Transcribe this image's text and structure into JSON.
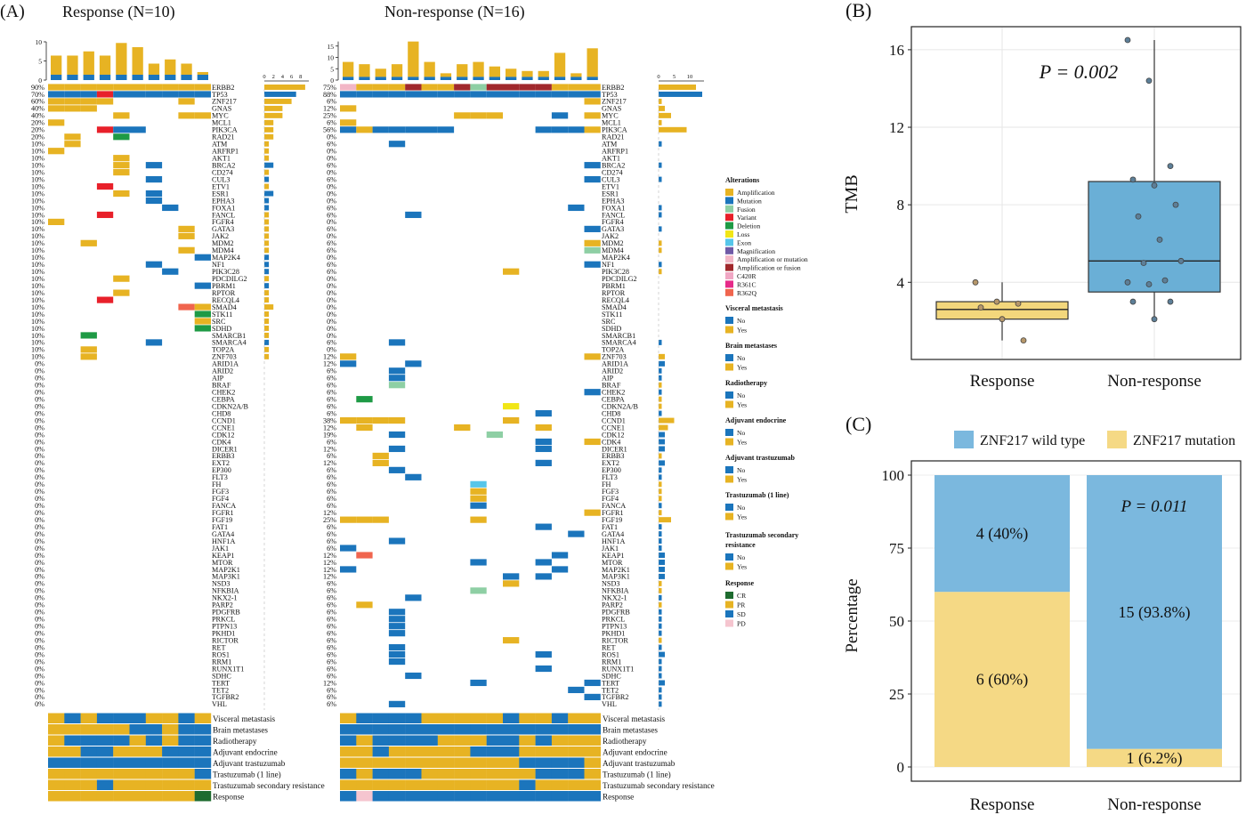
{
  "colors": {
    "amplification": "#E7B323",
    "mutation": "#1B75BC",
    "fusion": "#8ECFA4",
    "variant": "#E8202A",
    "deletion": "#1E9A45",
    "loss": "#F1E616",
    "exon": "#56C6EA",
    "magnification": "#6F5AA6",
    "amp_or_mut": "#F2B6C6",
    "amp_or_fusion": "#A0282C",
    "C420R": "#F0A7C4",
    "R361C": "#E62A89",
    "R362Q": "#F0654E",
    "no": "#1B75BC",
    "yes": "#E7B323",
    "CR": "#1E6B2F",
    "PR": "#E7B323",
    "SD": "#1B75BC",
    "PD": "#F5C5CF",
    "box_response": "#F3D77C",
    "box_nonresponse": "#6AAFD6",
    "wild_type": "#7BB8DE",
    "znf_mutation": "#F5D985"
  },
  "panel_labels": {
    "a": "(A)",
    "b": "(B)",
    "c": "(C)"
  },
  "panel_a": {
    "group_left_title": "Response (N=10)",
    "group_right_title": "Non-response (N=16)",
    "top_axis_left_ticks": [
      "10",
      "5",
      "0"
    ],
    "top_axis_right_ticks": [
      "15",
      "10",
      "5",
      "0"
    ],
    "side_axis_left_ticks": [
      "0",
      "2",
      "4",
      "6",
      "8"
    ],
    "side_axis_right_ticks": [
      "0",
      "5",
      "10"
    ],
    "legend": {
      "alterations_title": "Alterations",
      "alterations": [
        {
          "key": "amplification",
          "label": "Amplification"
        },
        {
          "key": "mutation",
          "label": "Mutation"
        },
        {
          "key": "fusion",
          "label": "Fusion"
        },
        {
          "key": "variant",
          "label": "Variant"
        },
        {
          "key": "deletion",
          "label": "Deletion"
        },
        {
          "key": "loss",
          "label": "Loss"
        },
        {
          "key": "exon",
          "label": "Exon"
        },
        {
          "key": "magnification",
          "label": "Magnification"
        },
        {
          "key": "amp_or_mut",
          "label": "Amplification or mutation"
        },
        {
          "key": "amp_or_fusion",
          "label": "Amplification or fusion"
        },
        {
          "key": "C420R",
          "label": "C420R"
        },
        {
          "key": "R361C",
          "label": "R361C"
        },
        {
          "key": "R362Q",
          "label": "R362Q"
        }
      ],
      "clinical": [
        {
          "title": "Visceral metastasis",
          "items": [
            "No",
            "Yes"
          ]
        },
        {
          "title": "Brain metastases",
          "items": [
            "No",
            "Yes"
          ]
        },
        {
          "title": "Radiotherapy",
          "items": [
            "No",
            "Yes"
          ]
        },
        {
          "title": "Adjuvant endocrine",
          "items": [
            "No",
            "Yes"
          ]
        },
        {
          "title": "Adjuvant trastuzumab",
          "items": [
            "No",
            "Yes"
          ]
        },
        {
          "title": "Trastuzumab (1 line)",
          "items": [
            "No",
            "Yes"
          ]
        },
        {
          "title": "Trastuzumab secondary",
          "title2": "resistance",
          "items": [
            "No",
            "Yes"
          ]
        },
        {
          "title": "Response",
          "items": [
            "CR",
            "PR",
            "SD",
            "PD"
          ]
        }
      ]
    }
  },
  "chart_data": [
    {
      "type": "heatmap",
      "genes": [
        "ERBB2",
        "TP53",
        "ZNF217",
        "GNAS",
        "MYC",
        "MCL1",
        "PIK3CA",
        "RAD21",
        "ATM",
        "ARFRP1",
        "AKT1",
        "BRCA2",
        "CD274",
        "CUL3",
        "ETV1",
        "ESR1",
        "EPHA3",
        "FOXA1",
        "FANCL",
        "FGFR4",
        "GATA3",
        "JAK2",
        "MDM2",
        "MDM4",
        "MAP2K4",
        "NF1",
        "PIK3C28",
        "PDCDILG2",
        "PBRM1",
        "RPTOR",
        "RECQL4",
        "SMAD4",
        "STK11",
        "SRC",
        "SDHD",
        "SMARCB1",
        "SMARCA4",
        "TOP2A",
        "ZNF703",
        "ARID1A",
        "ARID2",
        "AIP",
        "BRAF",
        "CHEK2",
        "CEBPA",
        "CDKN2A/B",
        "CHD8",
        "CCND1",
        "CCNE1",
        "CDK12",
        "CDK4",
        "DICER1",
        "ERBB3",
        "EXT2",
        "EP300",
        "FLT3",
        "FH",
        "FGF3",
        "FGF4",
        "FANCA",
        "FGFR1",
        "FGF19",
        "FAT1",
        "GATA4",
        "HNF1A",
        "JAK1",
        "KEAP1",
        "MTOR",
        "MAP2K1",
        "MAP3K1",
        "NSD3",
        "NFKBIA",
        "NKX2-1",
        "PARP2",
        "PDGFRB",
        "PRKCL",
        "PTPN13",
        "PKHD1",
        "RICTOR",
        "RET",
        "ROS1",
        "RRM1",
        "RUNX1T1",
        "SDHC",
        "TERT",
        "TET2",
        "TGFBR2",
        "VHL"
      ],
      "response_freq": [
        "90%",
        "70%",
        "60%",
        "40%",
        "40%",
        "20%",
        "20%",
        "20%",
        "10%",
        "10%",
        "10%",
        "10%",
        "10%",
        "10%",
        "10%",
        "10%",
        "10%",
        "10%",
        "10%",
        "10%",
        "10%",
        "10%",
        "10%",
        "10%",
        "10%",
        "10%",
        "10%",
        "10%",
        "10%",
        "10%",
        "10%",
        "10%",
        "10%",
        "10%",
        "10%",
        "10%",
        "10%",
        "10%",
        "10%",
        "0%",
        "0%",
        "0%",
        "0%",
        "0%",
        "0%",
        "0%",
        "0%",
        "0%",
        "0%",
        "0%",
        "0%",
        "0%",
        "0%",
        "0%",
        "0%",
        "0%",
        "0%",
        "0%",
        "0%",
        "0%",
        "0%",
        "0%",
        "0%",
        "0%",
        "0%",
        "0%",
        "0%",
        "0%",
        "0%",
        "0%",
        "0%",
        "0%",
        "0%",
        "0%",
        "0%",
        "0%",
        "0%",
        "0%",
        "0%",
        "0%",
        "0%",
        "0%",
        "0%",
        "0%",
        "0%",
        "0%",
        "0%",
        "0%"
      ],
      "nonresponse_freq": [
        "75%",
        "88%",
        "6%",
        "12%",
        "25%",
        "6%",
        "56%",
        "0%",
        "6%",
        "0%",
        "0%",
        "6%",
        "0%",
        "6%",
        "0%",
        "0%",
        "0%",
        "6%",
        "6%",
        "0%",
        "6%",
        "0%",
        "6%",
        "6%",
        "0%",
        "6%",
        "6%",
        "0%",
        "0%",
        "0%",
        "0%",
        "0%",
        "0%",
        "0%",
        "0%",
        "0%",
        "6%",
        "0%",
        "12%",
        "12%",
        "6%",
        "6%",
        "6%",
        "6%",
        "6%",
        "6%",
        "6%",
        "38%",
        "12%",
        "19%",
        "6%",
        "12%",
        "6%",
        "12%",
        "6%",
        "6%",
        "6%",
        "6%",
        "6%",
        "6%",
        "12%",
        "25%",
        "6%",
        "6%",
        "6%",
        "6%",
        "12%",
        "12%",
        "12%",
        "12%",
        "6%",
        "6%",
        "6%",
        "6%",
        "6%",
        "6%",
        "6%",
        "6%",
        "6%",
        "6%",
        "6%",
        "6%",
        "6%",
        "6%",
        "12%",
        "6%",
        "6%",
        "6%"
      ],
      "response_cells": [
        "AAAAAAAAAA",
        "MMMVMMMMMM",
        "AAAA....A.",
        "AAA.......",
        "....A...AA",
        "A.........",
        "...VMM....",
        ".A..G.....",
        ".A........",
        "A.........",
        "....A.....",
        "....A.M...",
        "....A.....",
        "......M...",
        "...V......",
        "....A.M...",
        "......M...",
        ".......M..",
        "...V......",
        "A.........",
        "........A.",
        "........A.",
        "..A.......",
        "........A.",
        ".........M",
        "......M...",
        ".......M..",
        "....A.....",
        ".........M",
        "....A.....",
        "...V......",
        "........RA",
        ".........D",
        ".........A",
        ".........D",
        "..D.......",
        "......M...",
        "..A.......",
        "..A......."
      ],
      "nonresponse_cells": [
        "OAAAXAAXFXXXXAAA",
        "MMMMMMMMMMMMMMMM",
        "...............A",
        "A...............",
        ".......AAA...M.A",
        "A...............",
        "MAMMMMM.....MMMA",
        "................",
        "...M............",
        "................",
        "................",
        "...............M",
        "................",
        "...............M",
        "................",
        "................",
        "................",
        "..............M.",
        "....M...........",
        "................",
        "...............M",
        "................",
        "...............A",
        "...............F",
        "................",
        "...............M",
        "..........A.....",
        "................",
        "................",
        "................",
        "................",
        "................",
        "................",
        "................",
        "................",
        "................",
        "...M............",
        "................",
        "A..............A",
        "M...M...........",
        "...M............",
        "...M............",
        "...F............",
        "...............M",
        ".G..............",
        "..........L.....",
        "............M...",
        "AAAA......A.....",
        ".A.....A....A...",
        "...M.....F......",
        "............M..A",
        "...M........M...",
        "..A.............",
        "..A.........M...",
        "...M............",
        "....M...........",
        "........E.......",
        "........A.......",
        "........A.......",
        "........M.......",
        "...............A",
        "AAA.....A.......",
        "............M...",
        "..............M.",
        "...M............",
        "M...............",
        ".R...........M..",
        "........M...M...",
        "M............M..",
        "..........M.M...",
        "..........A.....",
        "........F.......",
        "....M...........",
        ".A..............",
        "...M............",
        "...M............",
        "...M............",
        "...M............",
        "..........A.....",
        "...M............",
        "...M........M...",
        "...M............",
        "............M...",
        "....M...........",
        "........M......M",
        "..............M.",
        "...............M",
        "...M............"
      ],
      "response_top_bar": [
        6.4,
        6.4,
        7.5,
        6.4,
        9.7,
        8.6,
        4.3,
        5.4,
        4.3,
        2.1
      ],
      "nonresponse_top_bar": [
        8,
        7,
        5,
        7,
        17,
        8,
        3,
        7,
        8,
        6,
        5,
        4,
        4,
        12,
        3,
        14
      ],
      "response_side": [
        9,
        7,
        6,
        4,
        4,
        2,
        2,
        2
      ],
      "nonresponse_side": [
        12,
        14,
        1,
        2,
        4,
        1,
        9,
        0
      ]
    },
    {
      "type": "box",
      "title": "",
      "xlabel": "",
      "ylabel": "TMB",
      "categories": [
        "Response",
        "Non-response"
      ],
      "ylim": [
        0,
        17
      ],
      "yticks": [
        4,
        8,
        12,
        16
      ],
      "annotation": "P = 0.002",
      "series": [
        {
          "category": "Response",
          "q1": 2.1,
          "median": 2.6,
          "q3": 3.0,
          "whisker_low": 1.0,
          "whisker_high": 4.0,
          "points": [
            4.0,
            3.0,
            2.9,
            2.7,
            2.1,
            1.0
          ]
        },
        {
          "category": "Non-response",
          "q1": 3.5,
          "median": 5.1,
          "q3": 9.2,
          "whisker_low": 2.0,
          "whisker_high": 16.5,
          "points": [
            16.5,
            14.4,
            10.0,
            9.3,
            9.0,
            8.0,
            7.4,
            6.2,
            5.1,
            5.0,
            4.1,
            4.0,
            3.9,
            3.0,
            3.0,
            2.1
          ]
        }
      ]
    },
    {
      "type": "bar",
      "title": "",
      "xlabel": "",
      "ylabel": "Percentage",
      "categories": [
        "Response",
        "Non-response"
      ],
      "ylim": [
        0,
        100
      ],
      "yticks": [
        0,
        25,
        50,
        75,
        100
      ],
      "annotation": "P = 0.011",
      "series": [
        {
          "name": "ZNF217 mutation",
          "values": [
            60,
            6.2
          ],
          "labels": [
            "6 (60%)",
            "1 (6.2%)"
          ]
        },
        {
          "name": "ZNF217 wild type",
          "values": [
            40,
            93.8
          ],
          "labels": [
            "4 (40%)",
            "15 (93.8%)"
          ]
        }
      ]
    }
  ],
  "clinical_tracks": {
    "labels": [
      "Visceral metastasis",
      "Brain metastases",
      "Radiotherapy",
      "Adjuvant endocrine",
      "Adjuvant trastuzumab",
      "Trastuzumab (1 line)",
      "Trastuzumab secondary resistance",
      "Response"
    ],
    "response": [
      "YMYMMMYYMY",
      "YYYYYMMYMM",
      "YMMMMYMYMM",
      "YYMMYYYMMM",
      "MMMMMMMMMM",
      "YYYYYYYYYM",
      "YYYMYYYYYY",
      "YYYYYYYYYC"
    ],
    "nonresponse": [
      "YMMMMYYYYYMYYMYY",
      "MMMMMMMMMMMMMMMM",
      "MYMMMMYYYMMYMYYY",
      "YYMYYYYYMMMYYYYY",
      "YYYYYYYYYYYMMMMY",
      "MYMMMYYYYYYYMMMY",
      "YYYYYYYYYYYMYYYY",
      "MPMMMMMMMMMMMMMM"
    ]
  }
}
